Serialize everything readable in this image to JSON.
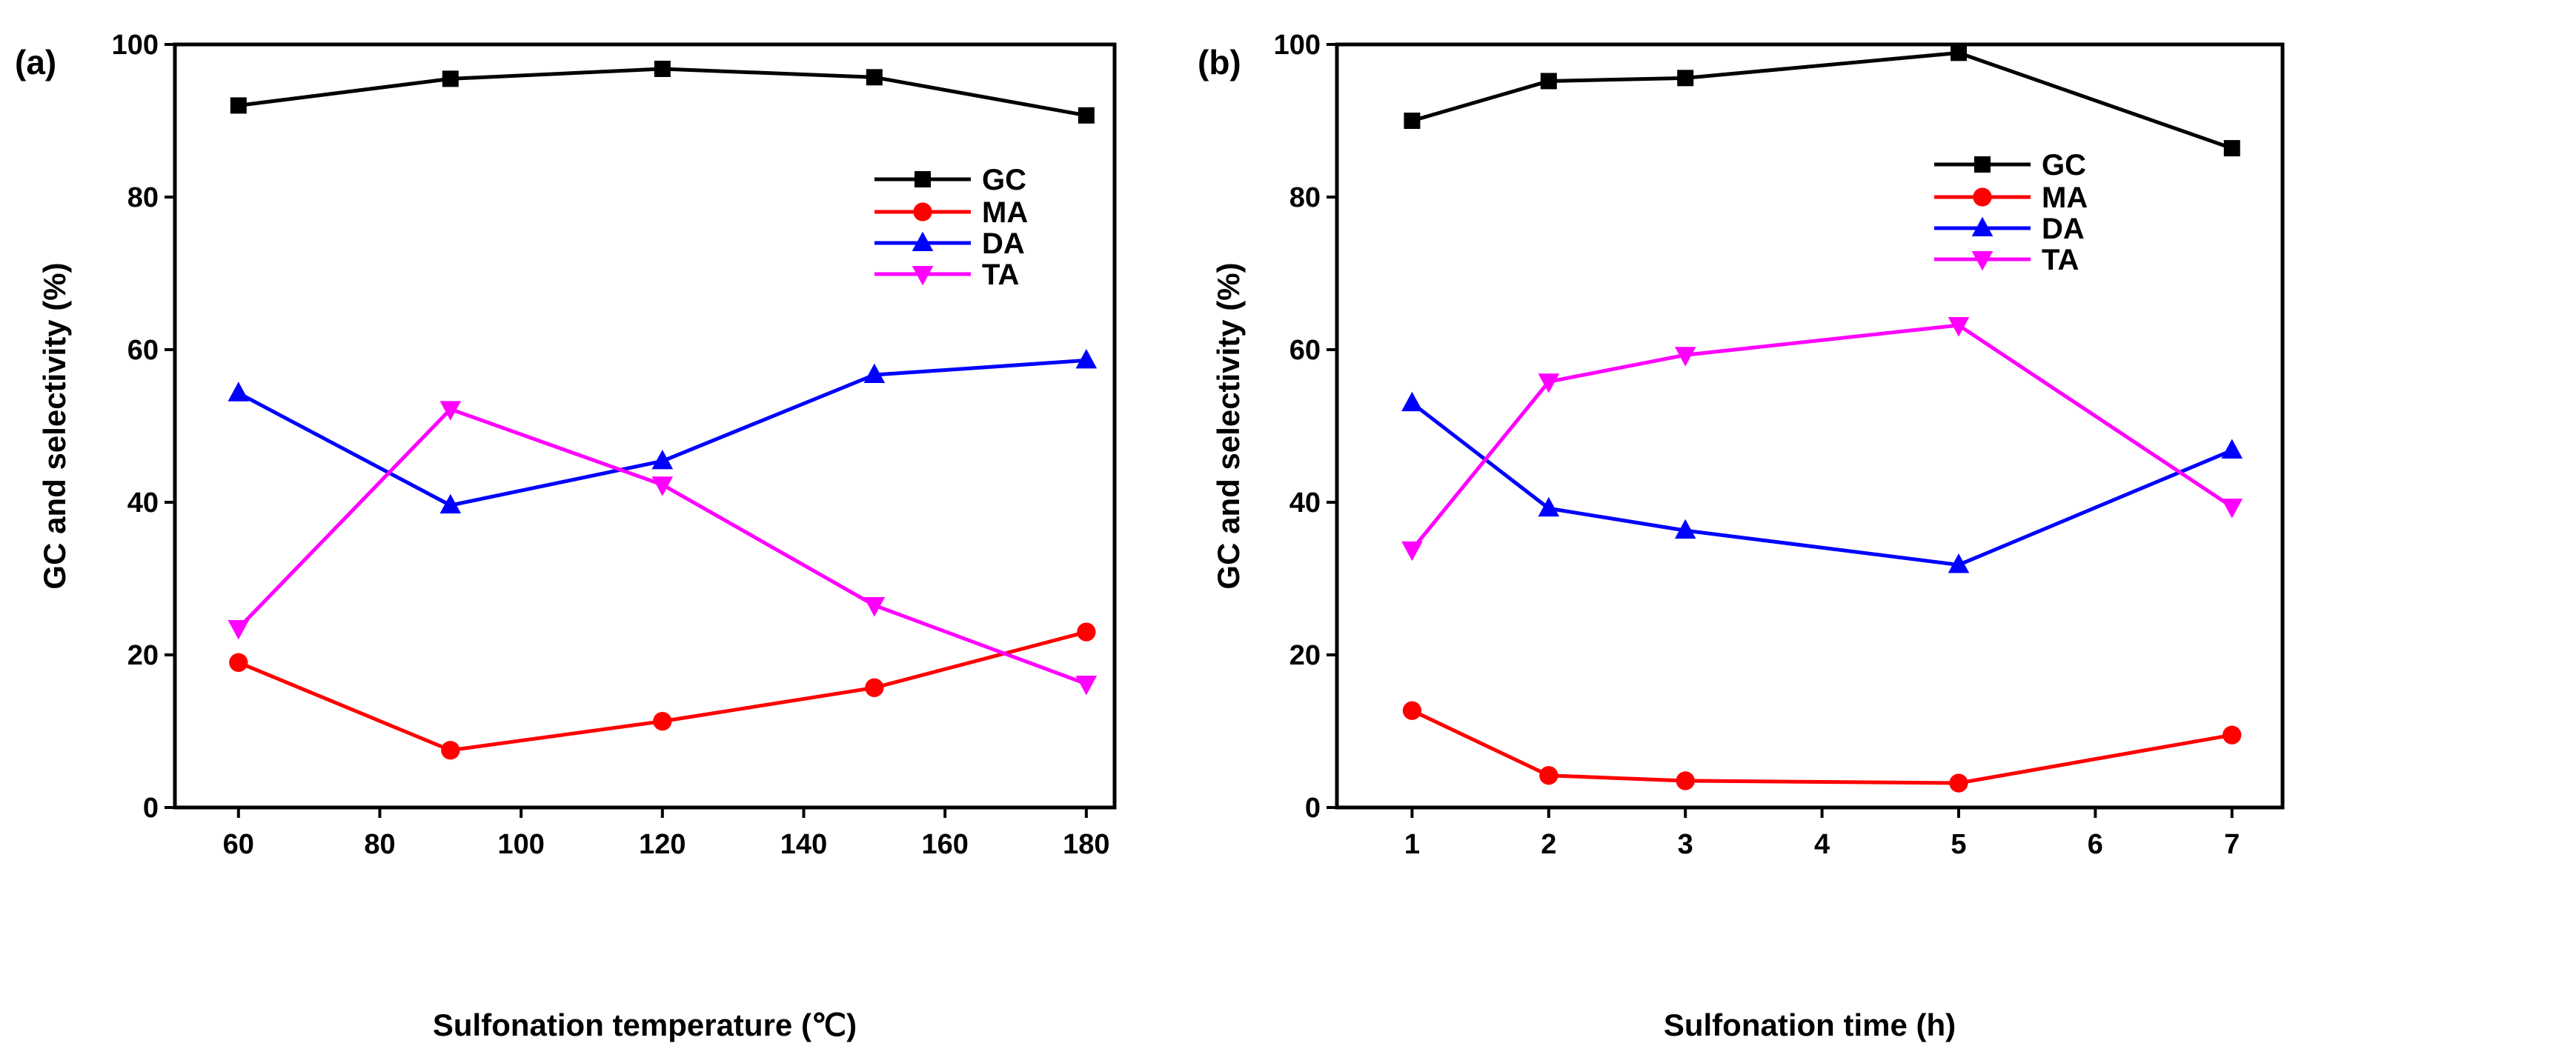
{
  "chart_data": [
    {
      "type": "line",
      "panel_label": "(a)",
      "xlabel": "Sulfonation temperature (℃)",
      "ylabel": "GC and selectivity (%)",
      "xlim": [
        51,
        184
      ],
      "ylim": [
        0,
        100
      ],
      "xticks": [
        60,
        80,
        100,
        120,
        140,
        160,
        180
      ],
      "yticks": [
        0,
        20,
        40,
        60,
        80,
        100
      ],
      "legend_position": "top-right",
      "grid": false,
      "x": [
        60,
        90,
        120,
        150,
        180
      ],
      "series": [
        {
          "name": "GC",
          "color": "#000000",
          "marker": "square",
          "values": [
            92.0,
            95.5,
            96.8,
            95.7,
            90.7
          ]
        },
        {
          "name": "MA",
          "color": "#ff0000",
          "marker": "circle",
          "values": [
            19.0,
            7.5,
            11.3,
            15.7,
            23.0
          ]
        },
        {
          "name": "DA",
          "color": "#0000ff",
          "marker": "triangle-up",
          "values": [
            54.3,
            39.6,
            45.4,
            56.7,
            58.6
          ]
        },
        {
          "name": "TA",
          "color": "#ff00ff",
          "marker": "triangle-down",
          "values": [
            23.5,
            52.2,
            42.3,
            26.5,
            16.2
          ]
        }
      ]
    },
    {
      "type": "line",
      "panel_label": "(b)",
      "xlabel": "Sulfonation time (h)",
      "ylabel": "GC and selectivity (%)",
      "xlim": [
        0.45,
        7.37
      ],
      "ylim": [
        0,
        100
      ],
      "xticks": [
        1,
        2,
        3,
        4,
        5,
        6,
        7
      ],
      "yticks": [
        0,
        20,
        40,
        60,
        80,
        100
      ],
      "legend_position": "top-right",
      "grid": false,
      "x": [
        1,
        2,
        3,
        5,
        7
      ],
      "series": [
        {
          "name": "GC",
          "color": "#000000",
          "marker": "square",
          "values": [
            90.0,
            95.2,
            95.6,
            98.9,
            86.4
          ]
        },
        {
          "name": "MA",
          "color": "#ff0000",
          "marker": "circle",
          "values": [
            12.7,
            4.2,
            3.5,
            3.2,
            9.5
          ]
        },
        {
          "name": "DA",
          "color": "#0000ff",
          "marker": "triangle-up",
          "values": [
            53.0,
            39.2,
            36.3,
            31.8,
            46.8
          ]
        },
        {
          "name": "TA",
          "color": "#ff00ff",
          "marker": "triangle-down",
          "values": [
            33.8,
            55.8,
            59.3,
            63.2,
            39.4
          ]
        }
      ]
    }
  ]
}
